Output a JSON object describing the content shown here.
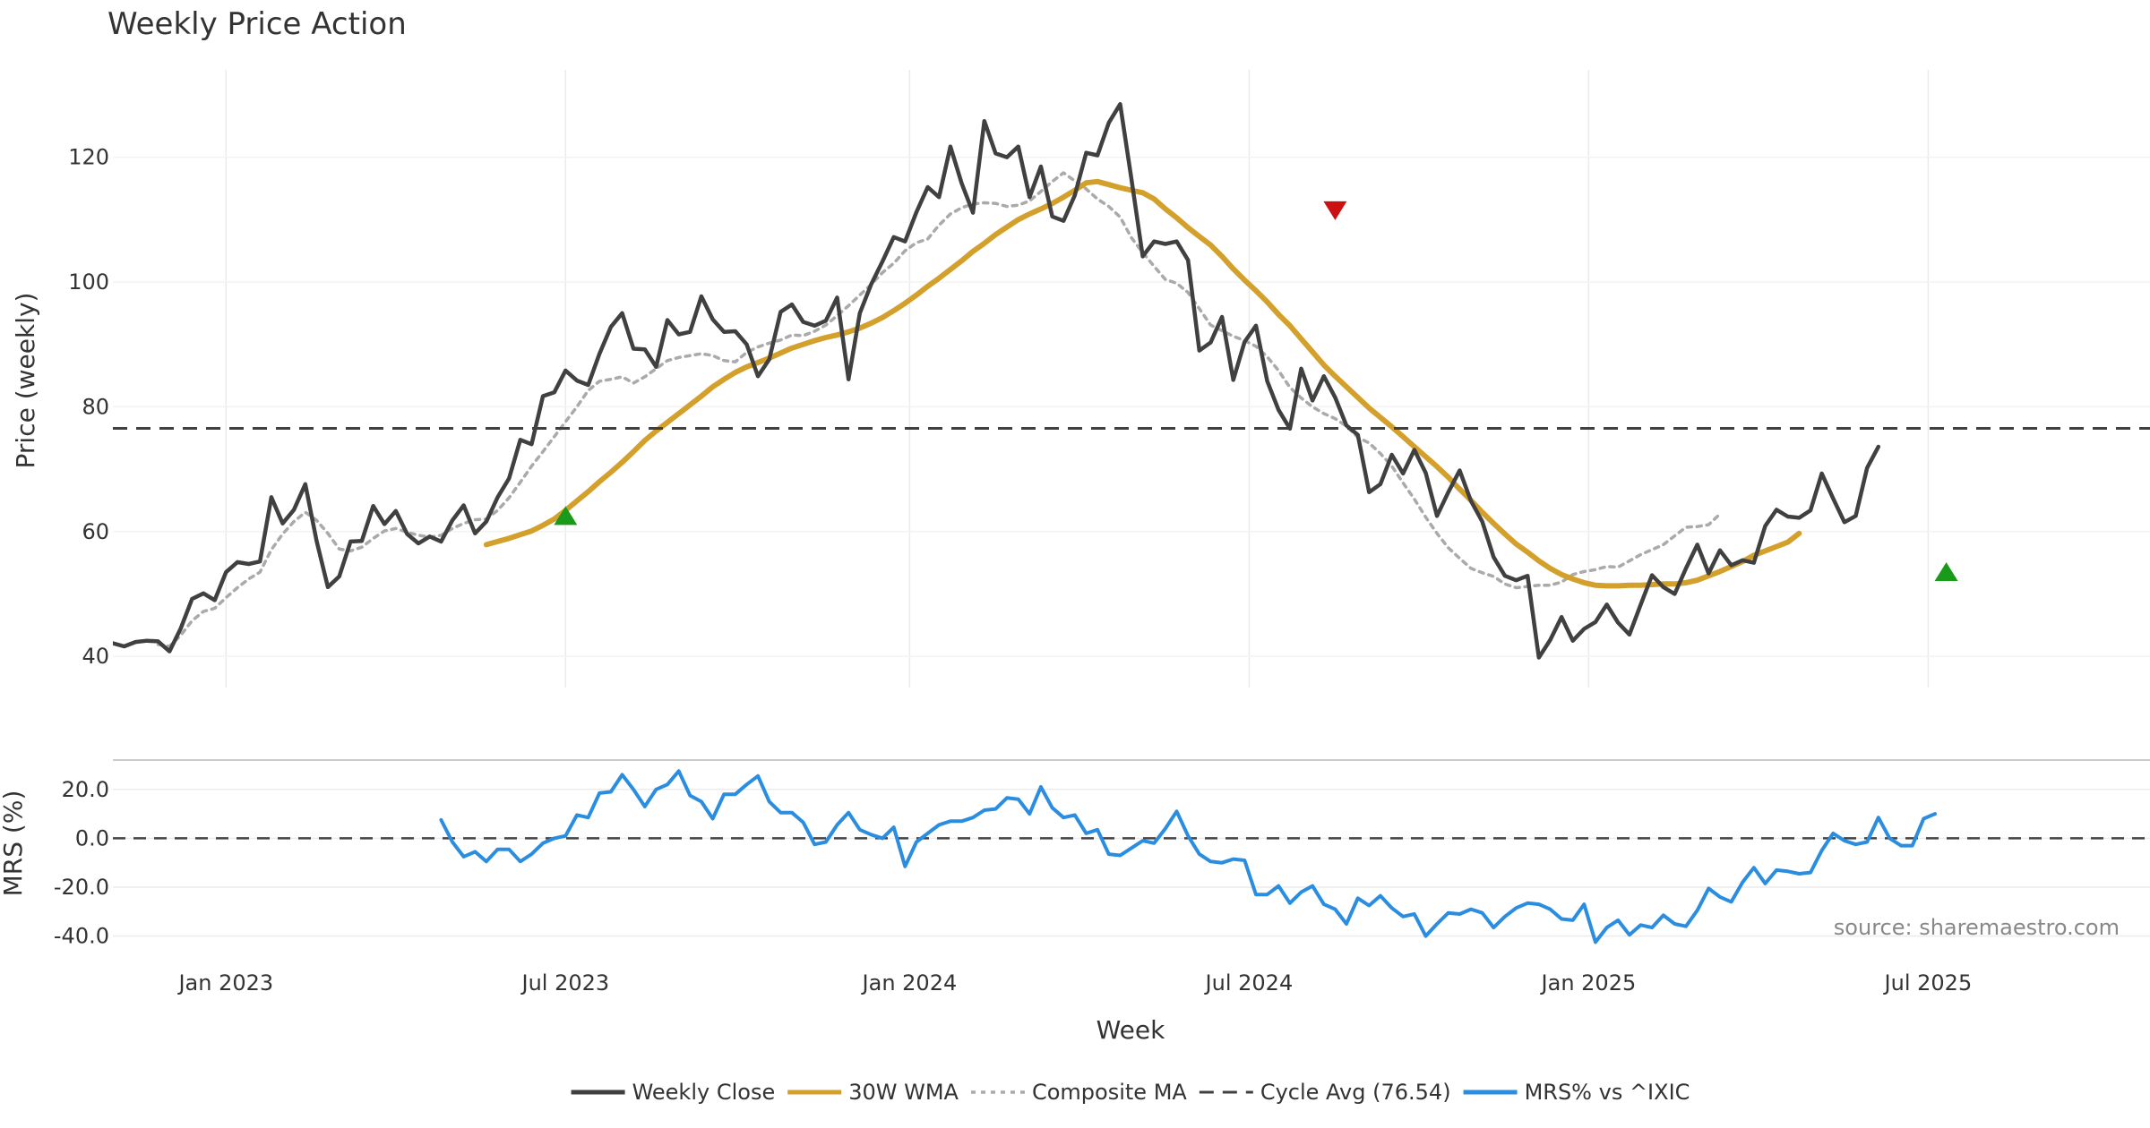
{
  "chart_data": {
    "type": "line",
    "title": "Weekly Price Action",
    "xlabel": "Week",
    "x_ticks": [
      "Jan 2023",
      "Jul 2023",
      "Jan 2024",
      "Jul 2024",
      "Jan 2025",
      "Jul 2025"
    ],
    "source_note": "source: sharemaestro.com",
    "panels": [
      {
        "name": "price",
        "ylabel": "Price (weekly)",
        "ylim": [
          35,
          134
        ],
        "y_ticks": [
          "40",
          "60",
          "80",
          "100",
          "120"
        ],
        "y_tick_values": [
          40,
          60,
          80,
          100,
          120
        ]
      },
      {
        "name": "mrs",
        "ylabel": "MRS (%)",
        "ylim": [
          -46,
          32
        ],
        "y_ticks": [
          "20.0",
          "0.0",
          "-20.0",
          "-40.0"
        ],
        "y_tick_values": [
          20,
          0,
          -20,
          -40
        ]
      }
    ],
    "x_start_week": 0,
    "x_end_week": 180,
    "x_tick_weeks": [
      10,
      40,
      70.4,
      100.4,
      130.4,
      160.4
    ],
    "series": [
      {
        "name": "Weekly Close",
        "color": "#404040",
        "style": "solid",
        "start_week": 0,
        "values": [
          42.1,
          41.6,
          42.3,
          42.5,
          42.4,
          40.8,
          44.5,
          49.2,
          50.1,
          49,
          53.5,
          55.1,
          54.8,
          55.2,
          65.5,
          61.3,
          63.5,
          67.6,
          58.5,
          51.1,
          52.8,
          58.4,
          58.5,
          64.1,
          61.2,
          63.3,
          59.6,
          58.1,
          59.2,
          58.4,
          61.8,
          64.2,
          59.7,
          61.6,
          65.5,
          68.5,
          74.7,
          74,
          81.7,
          82.3,
          85.8,
          84.2,
          83.5,
          88.5,
          92.8,
          95,
          89.3,
          89.2,
          86.4,
          93.9,
          91.6,
          92,
          97.7,
          94,
          92,
          92.1,
          90,
          84.9,
          87.6,
          95.2,
          96.4,
          93.6,
          93,
          93.8,
          97.5,
          84.4,
          95,
          99.6,
          103.3,
          107.2,
          106.5,
          111.2,
          115.2,
          113.6,
          121.7,
          115.8,
          111.1,
          125.8,
          120.6,
          120,
          121.7,
          113.6,
          118.5,
          110.5,
          109.8,
          113.9,
          120.7,
          120.3,
          125.5,
          128.5,
          116.5,
          104.1,
          106.5,
          106.1,
          106.5,
          103.5,
          89,
          90.3,
          94.4,
          84.3,
          90.4,
          93,
          84.1,
          79.5,
          76.5,
          86.1,
          81,
          84.9,
          81.5,
          77,
          75.5,
          66.3,
          67.6,
          72.3,
          69.3,
          73.1,
          69.4,
          62.5,
          66.3,
          69.8,
          64.9,
          61.6,
          55.9,
          52.9,
          52.2,
          52.9,
          39.8,
          42.6,
          46.3,
          42.5,
          44.4,
          45.5,
          48.3,
          45.4,
          43.5,
          48.3,
          53,
          51.1,
          50,
          54.1,
          57.9,
          53.3,
          57,
          54.6,
          55.4,
          55,
          60.9,
          63.5,
          62.4,
          62.2,
          63.4,
          69.3,
          65.3,
          61.5,
          62.5,
          70.2,
          73.6
        ]
      },
      {
        "name": "30W WMA",
        "color": "#d4a02c",
        "style": "solid",
        "start_week": 33,
        "values": [
          57.9,
          58.4,
          58.9,
          59.5,
          60.1,
          61,
          62,
          63.4,
          64.9,
          66.4,
          68,
          69.5,
          71.1,
          72.8,
          74.6,
          76.1,
          77.5,
          78.9,
          80.3,
          81.7,
          83.2,
          84.4,
          85.5,
          86.4,
          87.1,
          87.8,
          88.6,
          89.4,
          90,
          90.6,
          91.1,
          91.5,
          92,
          92.6,
          93.4,
          94.3,
          95.4,
          96.6,
          97.9,
          99.3,
          100.6,
          102,
          103.4,
          104.9,
          106.2,
          107.6,
          108.8,
          110,
          110.9,
          111.7,
          112.6,
          113.6,
          114.7,
          115.9,
          116.1,
          115.6,
          115.1,
          114.7,
          114.3,
          113.3,
          111.7,
          110.3,
          108.7,
          107.3,
          105.9,
          104.1,
          102.1,
          100.3,
          98.6,
          96.8,
          94.8,
          93,
          90.9,
          88.8,
          86.7,
          84.9,
          83.2,
          81.5,
          79.8,
          78.3,
          76.8,
          75.2,
          73.6,
          72,
          70.4,
          68.7,
          66.8,
          65,
          63.1,
          61.3,
          59.6,
          58,
          56.7,
          55.3,
          54.1,
          53.1,
          52.4,
          51.8,
          51.4,
          51.3,
          51.3,
          51.4,
          51.4,
          51.5,
          51.6,
          51.6,
          51.8,
          52.2,
          52.9,
          53.6,
          54.4,
          55.2,
          56.2,
          56.9,
          57.6,
          58.3,
          59.7
        ]
      },
      {
        "name": "Composite MA",
        "color": "#aaaaaa",
        "style": "dotted",
        "start_week": 4,
        "values": [
          41.9,
          41.6,
          43.4,
          45.7,
          47.2,
          47.7,
          49.4,
          51,
          52.4,
          53.5,
          57.1,
          59.6,
          61.6,
          63.1,
          61.8,
          59.7,
          57.2,
          56.9,
          57.5,
          58.9,
          60.1,
          60.5,
          59.9,
          59.4,
          59.1,
          59.4,
          60.5,
          61.3,
          61.9,
          62,
          63.4,
          65.4,
          67.9,
          70.5,
          72.8,
          75.2,
          77.6,
          80,
          82.6,
          84.1,
          84.4,
          84.8,
          83.8,
          84.8,
          86.1,
          87.4,
          87.9,
          88.2,
          88.5,
          88.2,
          87.4,
          87.2,
          88.7,
          89.6,
          90.2,
          90.7,
          91.5,
          91.4,
          92.1,
          93.1,
          94.6,
          96.2,
          97.9,
          99.6,
          101.5,
          103,
          105,
          106.3,
          106.9,
          109.1,
          110.9,
          111.9,
          112.5,
          112.7,
          112.6,
          112.1,
          112.3,
          113,
          114.5,
          116.1,
          117.5,
          116.2,
          114.9,
          113.3,
          112.1,
          110.4,
          107.1,
          104.7,
          102.5,
          100.4,
          99.8,
          98.3,
          95.7,
          93.1,
          92.2,
          91.3,
          90.6,
          89.7,
          88,
          85.8,
          83.1,
          81.4,
          80,
          78.9,
          78.1,
          76.9,
          75.1,
          74.2,
          72.5,
          70.5,
          67.8,
          65.2,
          62.3,
          59.7,
          57.4,
          55.7,
          54.1,
          53.4,
          52.8,
          51.6,
          51,
          51.2,
          51.4,
          51.4,
          51.9,
          53.1,
          53.6,
          53.9,
          54.4,
          54.3,
          55.3,
          56.3,
          57.1,
          57.9,
          59.3,
          60.7,
          60.8,
          61.1,
          62.8
        ]
      },
      {
        "name": "Cycle Avg (76.54)",
        "color": "#404040",
        "style": "dashed",
        "value": 76.54
      },
      {
        "name": "MRS% vs ^IXIC",
        "color": "#2b8de0",
        "style": "solid",
        "panel": "mrs",
        "start_week": 29,
        "values": [
          7.5,
          -1.5,
          -7.5,
          -5.5,
          -9.5,
          -4.5,
          -4.5,
          -9.5,
          -6.5,
          -2,
          0,
          1,
          9.5,
          8.5,
          18.5,
          19,
          26,
          20,
          13,
          20,
          22,
          27.5,
          17.5,
          15,
          8,
          18,
          18,
          22,
          25.5,
          15,
          10.5,
          10.5,
          6.5,
          -2.5,
          -1.5,
          5.5,
          10.5,
          3.5,
          1.5,
          0,
          4.5,
          -11.5,
          -1.5,
          2,
          5.5,
          7,
          7,
          8.5,
          11.5,
          12,
          16.5,
          16,
          10,
          21,
          12.5,
          8.5,
          9.5,
          2,
          3.5,
          -6.5,
          -7,
          -4,
          -1,
          -2,
          4,
          11,
          1,
          -6.5,
          -9.5,
          -10,
          -8.5,
          -9,
          -23,
          -23,
          -19.5,
          -26.5,
          -22,
          -19.5,
          -27,
          -29,
          -35,
          -24.5,
          -27.5,
          -23.5,
          -28.5,
          -32,
          -31,
          -40,
          -35,
          -30.5,
          -31,
          -29,
          -30.5,
          -36.5,
          -32,
          -28.5,
          -26.5,
          -27,
          -29,
          -33,
          -33.5,
          -27,
          -42.5,
          -36.5,
          -33.5,
          -39.5,
          -35.5,
          -36.5,
          -31.5,
          -35,
          -36,
          -29.5,
          -20.5,
          -24,
          -26,
          -18,
          -12,
          -18.5,
          -13,
          -13.5,
          -14.5,
          -14,
          -5,
          2,
          -1,
          -2.5,
          -1.5,
          8.5,
          0,
          -3,
          -3,
          8,
          10
        ]
      }
    ],
    "signals": [
      {
        "type": "buy",
        "week": 40,
        "price": 62.5,
        "color": "#1a9a1a"
      },
      {
        "type": "sell",
        "week": 108,
        "price": 111.5,
        "color": "#cc1111"
      },
      {
        "type": "buy",
        "week": 162,
        "price": 53.5,
        "color": "#1a9a1a"
      }
    ],
    "legend": [
      {
        "label": "Weekly Close",
        "color": "#404040",
        "style": "solid"
      },
      {
        "label": "30W WMA",
        "color": "#d4a02c",
        "style": "solid"
      },
      {
        "label": "Composite MA",
        "color": "#aaaaaa",
        "style": "dotted"
      },
      {
        "label": "Cycle Avg (76.54)",
        "color": "#404040",
        "style": "dashed"
      },
      {
        "label": "MRS% vs ^IXIC",
        "color": "#2b8de0",
        "style": "solid"
      }
    ]
  }
}
